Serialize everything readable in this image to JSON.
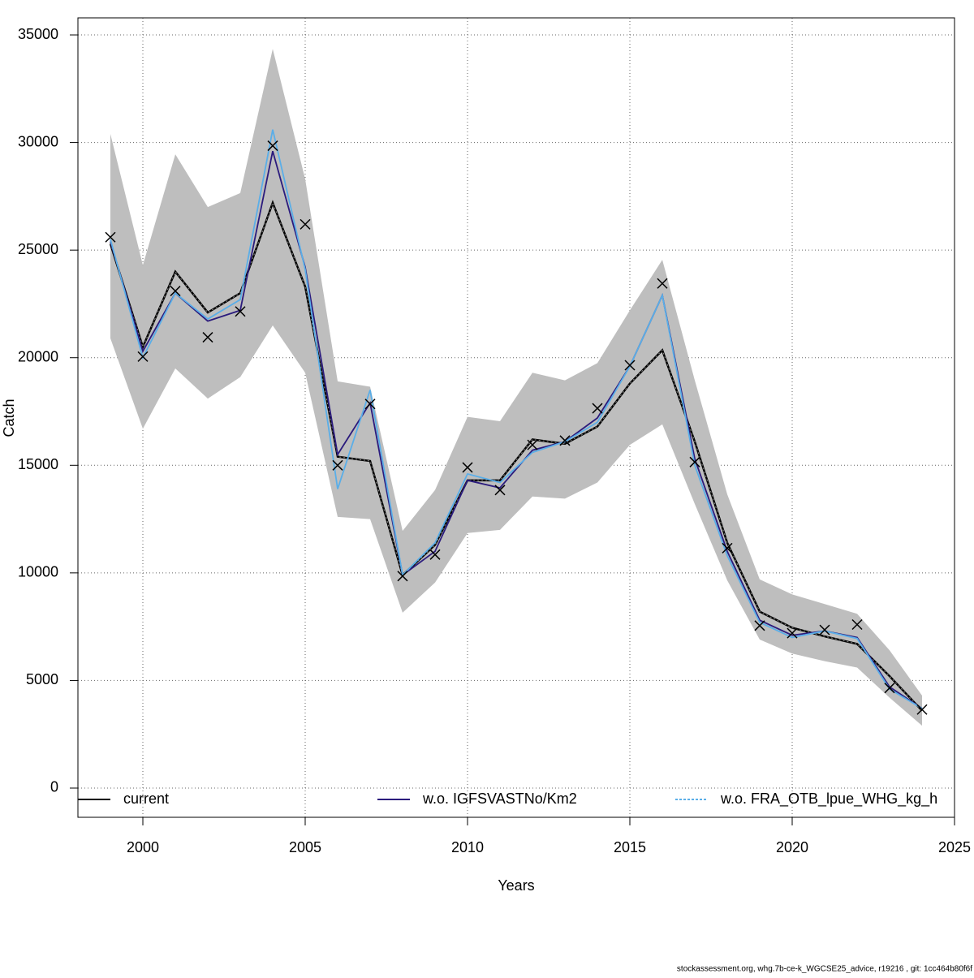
{
  "chart_data": {
    "type": "line",
    "xlabel": "Years",
    "ylabel": "Catch",
    "x": [
      1999,
      2000,
      2001,
      2002,
      2003,
      2004,
      2005,
      2006,
      2007,
      2008,
      2009,
      2010,
      2011,
      2012,
      2013,
      2014,
      2015,
      2016,
      2017,
      2018,
      2019,
      2020,
      2021,
      2022,
      2023,
      2024
    ],
    "series": [
      {
        "name": "current",
        "color": "#000000",
        "values": [
          25300,
          20500,
          24000,
          22100,
          23000,
          27200,
          23300,
          15400,
          15200,
          9900,
          11300,
          14300,
          14300,
          16200,
          16000,
          16800,
          18800,
          20350,
          16100,
          11400,
          8200,
          7450,
          7050,
          6700,
          5200,
          3600
        ]
      },
      {
        "name": "w.o. IGFSVASTNo/Km2",
        "color": "#2b1b7d",
        "values": [
          25400,
          20300,
          23000,
          21700,
          22200,
          29600,
          24200,
          15500,
          17900,
          9900,
          11000,
          14300,
          13950,
          15700,
          16100,
          17200,
          19600,
          22900,
          15300,
          11000,
          7800,
          7100,
          7300,
          7000,
          4700,
          3700
        ]
      },
      {
        "name": "w.o. FRA_OTB_lpue_WHG_kg_h",
        "color": "#5aaee8",
        "values": [
          25500,
          20000,
          23000,
          21800,
          22700,
          30600,
          24100,
          13900,
          18500,
          9900,
          11400,
          14600,
          14200,
          15600,
          16100,
          17000,
          19600,
          22900,
          15000,
          10800,
          7700,
          7000,
          7300,
          6950,
          4600,
          3700
        ]
      }
    ],
    "band": {
      "color": "#bebebe",
      "lower": [
        20900,
        16700,
        19500,
        18100,
        19100,
        21500,
        19300,
        12600,
        12500,
        8150,
        9550,
        11850,
        12000,
        13550,
        13450,
        14200,
        15950,
        16900,
        13200,
        9650,
        6900,
        6250,
        5900,
        5600,
        4200,
        2900
      ],
      "upper": [
        30400,
        24300,
        29450,
        27000,
        27650,
        34350,
        28300,
        18900,
        18650,
        11950,
        13850,
        17250,
        17050,
        19300,
        18950,
        19750,
        22200,
        24550,
        18950,
        13650,
        9700,
        9000,
        8550,
        8100,
        6400,
        4300
      ]
    },
    "observations": [
      25600,
      20050,
      23100,
      20950,
      22150,
      29850,
      26200,
      15000,
      17850,
      9850,
      10850,
      14900,
      13850,
      15950,
      16150,
      17650,
      19650,
      23450,
      15150,
      11150,
      7550,
      7200,
      7350,
      7600,
      4650,
      3650
    ],
    "xlim": [
      1998,
      2025
    ],
    "ylim": [
      -1358,
      35793
    ],
    "xticks": [
      2000,
      2005,
      2010,
      2015,
      2020,
      2025
    ],
    "yticks": [
      0,
      5000,
      10000,
      15000,
      20000,
      25000,
      30000,
      35000
    ],
    "grid": true,
    "legend": "bottom"
  },
  "footer": "stockassessment.org, whg.7b-ce-k_WGCSE25_advice, r19216 , git: 1cc464b80f6f"
}
